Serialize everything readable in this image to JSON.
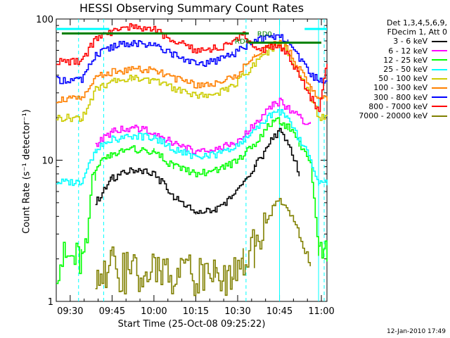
{
  "title": "HESSI Observing Summary Count Rates",
  "xlabel": "Start Time (25-Oct-08 09:25:22)",
  "ylabel": "Count Rate (s⁻¹ detector⁻¹)",
  "legend_header": [
    "Det 1,3,4,5,6,9,",
    "FDecim 1, Att 0"
  ],
  "timestamp": "12-Jan-2010 17:49",
  "chart_data": {
    "type": "line",
    "title": "HESSI Observing Summary Count Rates",
    "xlabel": "Start Time (25-Oct-08 09:25:22)",
    "ylabel": "Count Rate (s⁻¹ detector⁻¹)",
    "yscale": "log",
    "xlim": [
      "09:25",
      "11:02"
    ],
    "ylim": [
      1,
      100
    ],
    "x_ticks": [
      "09:30",
      "09:45",
      "10:00",
      "10:15",
      "10:30",
      "10:45",
      "11:00"
    ],
    "y_ticks": [
      "1",
      "10",
      "100"
    ],
    "grid": false,
    "legend_position": "right, outside plot",
    "x": [
      "09:25",
      "09:34",
      "09:39",
      "09:45",
      "09:52",
      "10:00",
      "10:07",
      "10:15",
      "10:22",
      "10:28",
      "10:32",
      "10:36",
      "10:40",
      "10:43",
      "10:45",
      "10:48",
      "10:52",
      "10:56",
      "10:59",
      "11:02"
    ],
    "series": [
      {
        "name": "3 - 6 keV",
        "color": "#000000",
        "values": [
          null,
          null,
          5,
          7.5,
          8.5,
          8,
          5.5,
          4.2,
          4.5,
          5.5,
          7,
          9,
          12,
          15,
          16,
          13,
          8,
          null,
          null,
          null
        ]
      },
      {
        "name": "6 - 12 keV",
        "color": "#ff00ff",
        "values": [
          null,
          null,
          13,
          16,
          17,
          16,
          13,
          11.5,
          12,
          13,
          15,
          18,
          22,
          25,
          26,
          23,
          20,
          18,
          null,
          null
        ]
      },
      {
        "name": "12 - 25 keV",
        "color": "#00ff00",
        "values": [
          2,
          2,
          9,
          11,
          12,
          11.5,
          9,
          8,
          8.5,
          9.5,
          11,
          13,
          17,
          19,
          19,
          17,
          13,
          10,
          2,
          2
        ]
      },
      {
        "name": "25 - 50 keV",
        "color": "#00ffff",
        "values": [
          7,
          7,
          12,
          14,
          15,
          14.5,
          12,
          10.5,
          11,
          12,
          14,
          16,
          20,
          22,
          22,
          20,
          14,
          10,
          7,
          7
        ]
      },
      {
        "name": "50 - 100 keV",
        "color": "#cccc00",
        "values": [
          20,
          20,
          32,
          36,
          38,
          37,
          32,
          29,
          30,
          33,
          40,
          48,
          57,
          64,
          66,
          58,
          40,
          28,
          20,
          20
        ]
      },
      {
        "name": "100 - 300 keV",
        "color": "#ff8000",
        "values": [
          27,
          27,
          39,
          42,
          44,
          43,
          38,
          34,
          35,
          38,
          46,
          54,
          62,
          66,
          67,
          60,
          44,
          32,
          27,
          27
        ]
      },
      {
        "name": "300 - 800 keV",
        "color": "#0000ff",
        "values": [
          37,
          37,
          56,
          64,
          68,
          66,
          56,
          48,
          50,
          56,
          64,
          70,
          74,
          76,
          76,
          68,
          52,
          40,
          37,
          37
        ]
      },
      {
        "name": "800 - 7000 keV",
        "color": "#ff0000",
        "values": [
          50,
          50,
          74,
          82,
          88,
          84,
          70,
          60,
          62,
          68,
          78,
          60,
          62,
          65,
          65,
          55,
          40,
          28,
          22,
          50
        ]
      },
      {
        "name": "7000 - 20000 keV",
        "color": "#808000",
        "values": [
          null,
          null,
          1.5,
          1.8,
          1.7,
          1.6,
          1.6,
          1.6,
          1.6,
          1.7,
          2,
          2.6,
          3.6,
          4.8,
          5.2,
          4.4,
          3,
          1.8,
          null,
          null
        ]
      }
    ],
    "annotations": [
      {
        "text": "RD0",
        "color": "#008000"
      },
      {
        "text": "RD4",
        "color": "#008000"
      }
    ],
    "markers": [
      {
        "kind": "horizontal bar",
        "color": "#008000",
        "y": 79,
        "from": "09:27",
        "to": "10:34"
      },
      {
        "kind": "horizontal bar",
        "color": "#008000",
        "y": 68,
        "from": "10:34",
        "to": "11:00"
      },
      {
        "kind": "horizontal bar",
        "color": "#00ffff",
        "y": 85,
        "from": "09:25",
        "to": "09:44"
      },
      {
        "kind": "horizontal bar",
        "color": "#00ffff",
        "y": 85,
        "from": "10:54",
        "to": "11:02"
      },
      {
        "kind": "solid vertical line",
        "color": "#00ffff",
        "x": "10:45"
      },
      {
        "kind": "solid vertical line",
        "color": "#00ffff",
        "x": "10:59"
      },
      {
        "kind": "dashed vertical line",
        "color": "#00ffff",
        "x": "09:33"
      },
      {
        "kind": "dashed vertical line",
        "color": "#00ffff",
        "x": "09:42"
      },
      {
        "kind": "dashed vertical line",
        "color": "#00ffff",
        "x": "10:33"
      },
      {
        "kind": "dashed vertical line",
        "color": "#00ffff",
        "x": "11:01"
      }
    ]
  }
}
